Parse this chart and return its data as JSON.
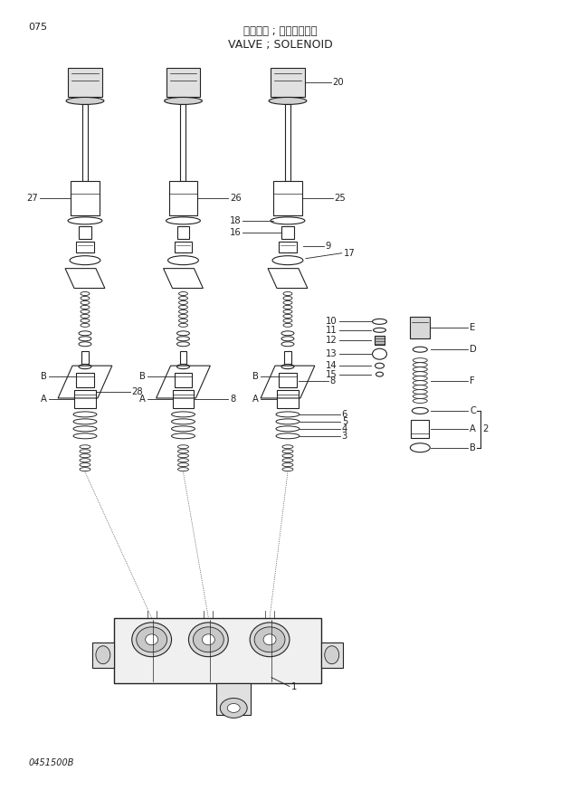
{
  "page_number": "075",
  "japanese_title": "バルブ・；ソレノイド・",
  "english_title": "VALVE ; SOLENOID",
  "catalog_number": "0451500B",
  "bg_color": "#ffffff",
  "lc": "#222222",
  "tc": "#222222",
  "fig_width": 6.2,
  "fig_height": 8.73,
  "dpi": 100
}
